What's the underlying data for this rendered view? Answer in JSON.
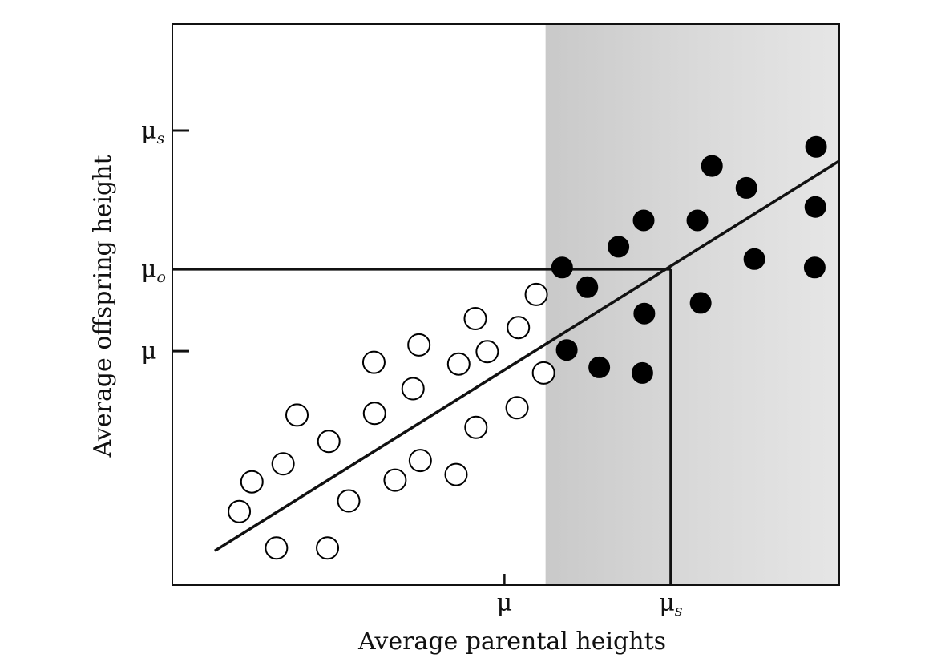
{
  "chart_data": {
    "type": "scatter",
    "xlabel": "Average parental heights",
    "ylabel": "Average offspring height",
    "xlim": [
      0,
      100
    ],
    "ylim": [
      0,
      100
    ],
    "x_ticks": [
      {
        "value": 49.5,
        "label": "μ",
        "sub": ""
      },
      {
        "value": 74.6,
        "label": "μ",
        "sub": "s"
      }
    ],
    "y_ticks": [
      {
        "value": 41.7,
        "label": "μ",
        "sub": ""
      },
      {
        "value": 56.3,
        "label": "μ",
        "sub": "o"
      },
      {
        "value": 81.0,
        "label": "μ",
        "sub": "s"
      }
    ],
    "selected_region": {
      "x_from": 55.7,
      "x_to": 100
    },
    "regression_line": {
      "x": [
        5.8,
        100
      ],
      "y": [
        6.1,
        75.6
      ]
    },
    "selected_mean_line": {
      "x": 74.6,
      "y": 56.3
    },
    "series": [
      {
        "style": "open",
        "points": [
          [
            9.5,
            13.1
          ],
          [
            11.4,
            18.4
          ],
          [
            15.1,
            6.6
          ],
          [
            16.1,
            21.6
          ],
          [
            18.2,
            30.3
          ],
          [
            22.8,
            6.6
          ],
          [
            23.0,
            25.6
          ],
          [
            26.0,
            15.0
          ],
          [
            29.8,
            39.7
          ],
          [
            29.9,
            30.6
          ],
          [
            33.0,
            18.7
          ],
          [
            35.7,
            35.0
          ],
          [
            36.8,
            22.2
          ],
          [
            36.6,
            42.8
          ],
          [
            42.2,
            19.7
          ],
          [
            42.6,
            39.4
          ],
          [
            45.2,
            28.1
          ],
          [
            45.1,
            47.5
          ],
          [
            46.9,
            41.6
          ],
          [
            51.4,
            31.6
          ],
          [
            51.6,
            45.9
          ],
          [
            54.3,
            51.8
          ],
          [
            55.4,
            37.8
          ]
        ]
      },
      {
        "style": "filled",
        "points": [
          [
            58.2,
            56.6
          ],
          [
            58.9,
            41.9
          ],
          [
            62.0,
            53.1
          ],
          [
            63.8,
            38.8
          ],
          [
            66.7,
            60.3
          ],
          [
            70.3,
            37.8
          ],
          [
            70.5,
            65.0
          ],
          [
            70.6,
            48.4
          ],
          [
            78.6,
            65.0
          ],
          [
            79.1,
            50.3
          ],
          [
            80.8,
            74.7
          ],
          [
            86.0,
            70.8
          ],
          [
            87.2,
            58.1
          ],
          [
            96.3,
            56.6
          ],
          [
            96.4,
            67.4
          ],
          [
            96.5,
            78.1
          ]
        ]
      }
    ]
  }
}
